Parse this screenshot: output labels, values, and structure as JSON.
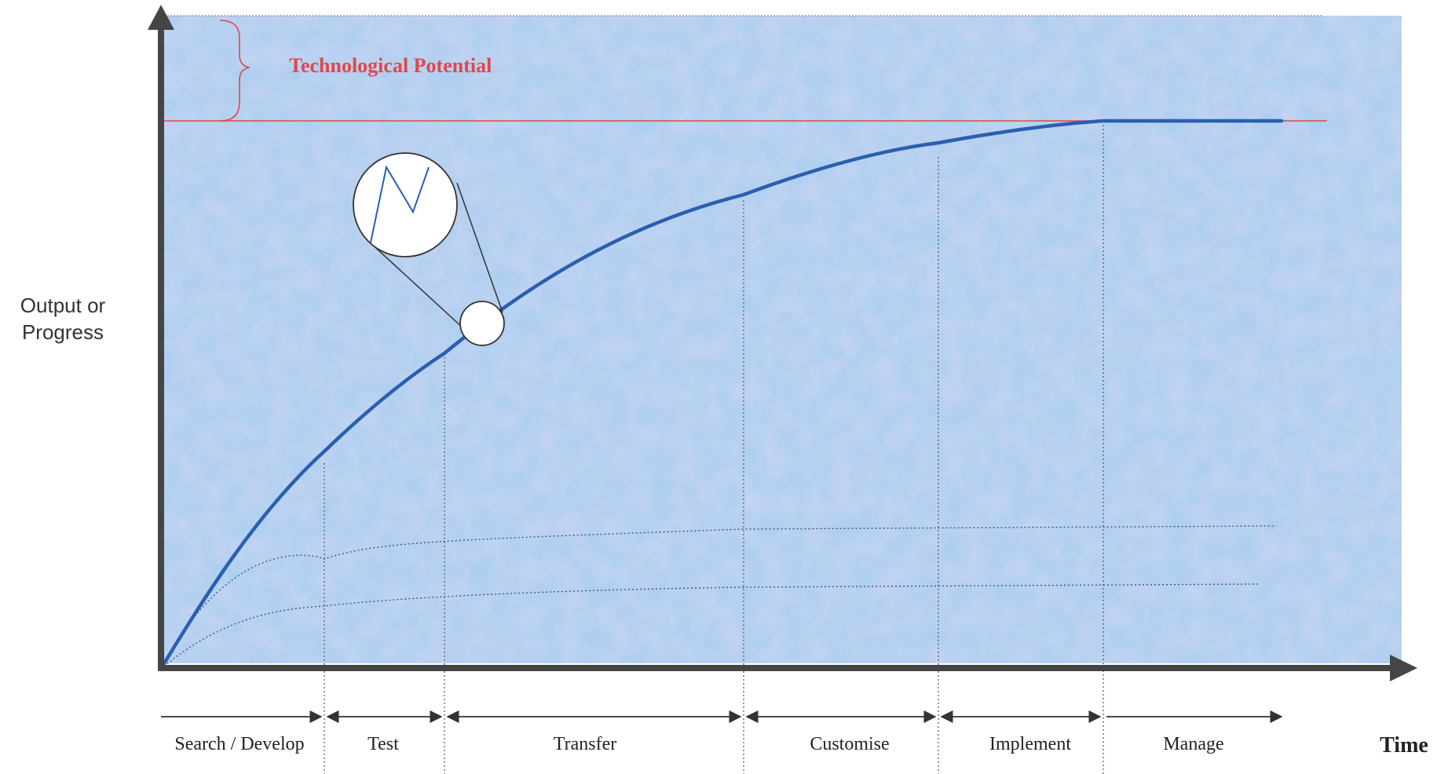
{
  "y_axis_label": [
    "Output or",
    "Progress"
  ],
  "x_axis_label": "Time",
  "potential_label": "Technological Potential",
  "phases": [
    {
      "label": "Search / Develop"
    },
    {
      "label": "Test"
    },
    {
      "label": "Transfer"
    },
    {
      "label": "Customise"
    },
    {
      "label": "Implement"
    },
    {
      "label": "Manage"
    }
  ],
  "colors": {
    "background": "#a9cdef",
    "axis": "#454545",
    "main_curve": "#2a5fb0",
    "potential": "#e0474c",
    "dotted": "#3a5a85",
    "phase_text": "#222222"
  },
  "icons": {
    "magnifier": "magnifier-circle-icon"
  }
}
